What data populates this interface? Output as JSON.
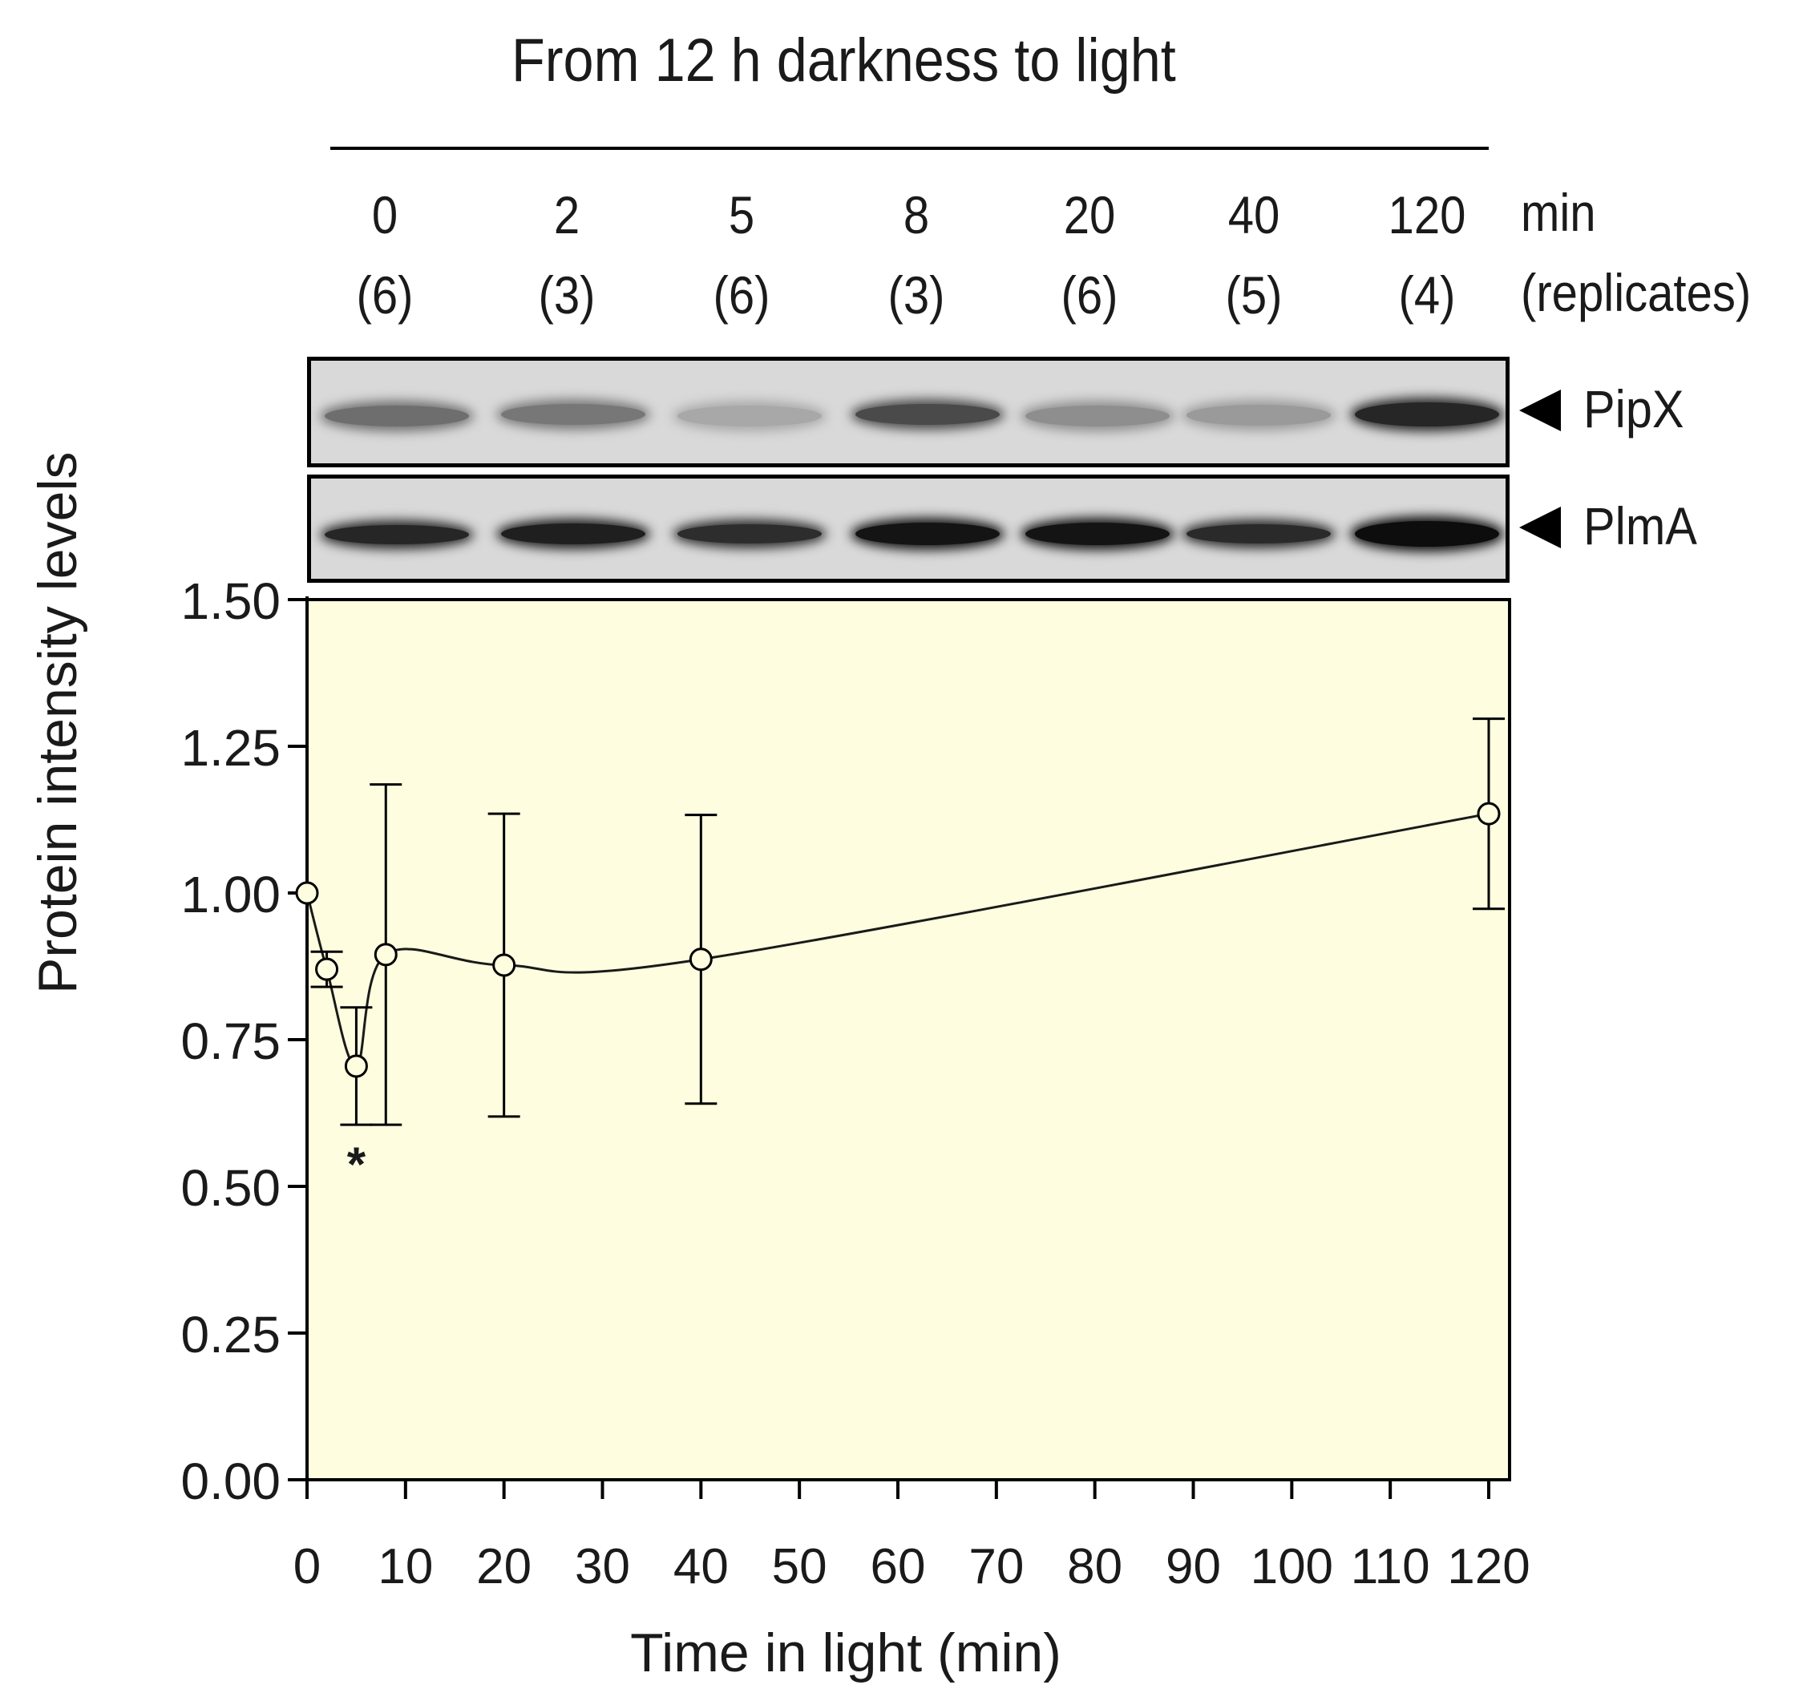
{
  "header": {
    "title": "From 12 h darkness to light",
    "time_unit": "min",
    "replicates_unit": "(replicates)"
  },
  "lanes": [
    {
      "time": "0",
      "replicates": "(6)"
    },
    {
      "time": "2",
      "replicates": "(3)"
    },
    {
      "time": "5",
      "replicates": "(6)"
    },
    {
      "time": "8",
      "replicates": "(3)"
    },
    {
      "time": "20",
      "replicates": "(6)"
    },
    {
      "time": "40",
      "replicates": "(5)"
    },
    {
      "time": "120",
      "replicates": "(4)"
    }
  ],
  "blots": [
    {
      "protein": "PipX",
      "band_colors": [
        "#6e6e6e",
        "#777777",
        "#a8a8a8",
        "#4a4a4a",
        "#8e8e8e",
        "#9a9a9a",
        "#262626"
      ]
    },
    {
      "protein": "PlmA",
      "band_colors": [
        "#262626",
        "#1f1f1f",
        "#2d2d2d",
        "#141414",
        "#141414",
        "#2a2a2a",
        "#0d0d0d"
      ]
    }
  ],
  "colors": {
    "plot_background": "#fefde0",
    "marker_fill": "#fefde0",
    "line": "#1a1a1a",
    "blot_background": "#d9d9d9"
  },
  "chart_data": {
    "type": "line",
    "title": "",
    "xlabel": "Time in light (min)",
    "ylabel": "Protein intensity levels",
    "xlim": [
      0,
      120
    ],
    "ylim": [
      0,
      1.5
    ],
    "x_ticks": [
      "0",
      "10",
      "20",
      "30",
      "40",
      "50",
      "60",
      "70",
      "80",
      "90",
      "100",
      "110",
      "120"
    ],
    "y_ticks": [
      "0.00",
      "0.25",
      "0.50",
      "0.75",
      "1.00",
      "1.25",
      "1.50"
    ],
    "grid": false,
    "legend": "none",
    "smooth": true,
    "series": [
      {
        "x": [
          0,
          2,
          5,
          8,
          20,
          40,
          120
        ],
        "y": [
          1.0,
          0.87,
          0.705,
          0.895,
          0.877,
          0.887,
          1.135
        ],
        "error": [
          0.0,
          0.03,
          0.1,
          0.29,
          0.258,
          0.246,
          0.162
        ]
      }
    ],
    "annotations": [
      {
        "x": 5,
        "text": "*"
      }
    ]
  }
}
